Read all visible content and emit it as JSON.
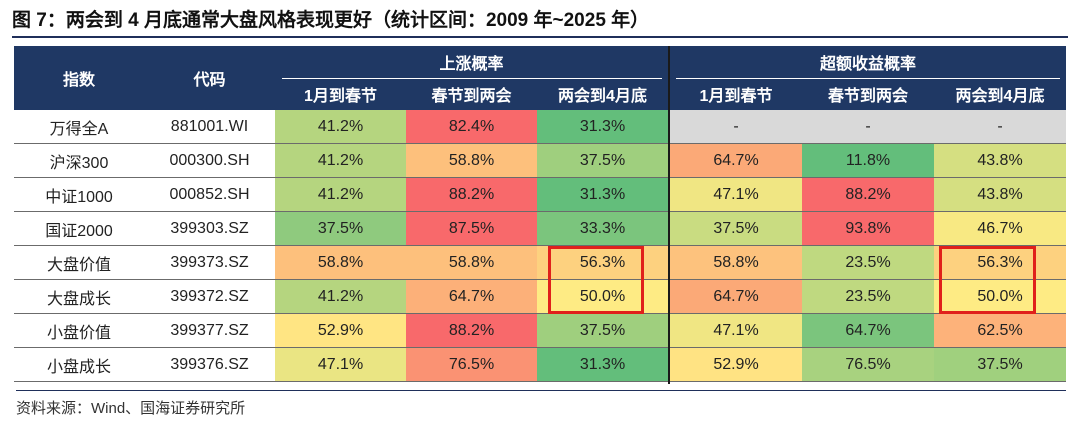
{
  "title": "图 7：两会到 4 月底通常大盘风格表现更好（统计区间：2009 年~2025 年）",
  "source": "资料来源：Wind、国海证券研究所",
  "chart_data": {
    "type": "table",
    "header": {
      "col_index": "指数",
      "col_code": "代码",
      "group1": "上涨概率",
      "group2": "超额收益概率",
      "sub": [
        "1月到春节",
        "春节到两会",
        "两会到4月底",
        "1月到春节",
        "春节到两会",
        "两会到4月底"
      ]
    },
    "rows": [
      {
        "name": "万得全A",
        "code": "881001.WI",
        "values": [
          "41.2%",
          "82.4%",
          "31.3%",
          "-",
          "-",
          "-"
        ]
      },
      {
        "name": "沪深300",
        "code": "000300.SH",
        "values": [
          "41.2%",
          "58.8%",
          "37.5%",
          "64.7%",
          "11.8%",
          "43.8%"
        ]
      },
      {
        "name": "中证1000",
        "code": "000852.SH",
        "values": [
          "41.2%",
          "88.2%",
          "31.3%",
          "47.1%",
          "88.2%",
          "43.8%"
        ]
      },
      {
        "name": "国证2000",
        "code": "399303.SZ",
        "values": [
          "37.5%",
          "87.5%",
          "33.3%",
          "37.5%",
          "93.8%",
          "46.7%"
        ]
      },
      {
        "name": "大盘价值",
        "code": "399373.SZ",
        "values": [
          "58.8%",
          "58.8%",
          "56.3%",
          "58.8%",
          "23.5%",
          "56.3%"
        ]
      },
      {
        "name": "大盘成长",
        "code": "399372.SZ",
        "values": [
          "41.2%",
          "64.7%",
          "50.0%",
          "64.7%",
          "23.5%",
          "50.0%"
        ]
      },
      {
        "name": "小盘价值",
        "code": "399377.SZ",
        "values": [
          "52.9%",
          "88.2%",
          "37.5%",
          "47.1%",
          "64.7%",
          "62.5%"
        ]
      },
      {
        "name": "小盘成长",
        "code": "399376.SZ",
        "values": [
          "47.1%",
          "76.5%",
          "31.3%",
          "52.9%",
          "76.5%",
          "37.5%"
        ]
      }
    ],
    "cell_colors": [
      [
        "#b5d57f",
        "#f8696b",
        "#63be7b",
        "#d9d9d9",
        "#d9d9d9",
        "#d9d9d9"
      ],
      [
        "#b5d57f",
        "#fdc07c",
        "#9fcf7e",
        "#fba977",
        "#63be7b",
        "#d5df81"
      ],
      [
        "#b5d57f",
        "#f8696b",
        "#63be7b",
        "#f0e683",
        "#f8696b",
        "#d5df81"
      ],
      [
        "#8fca7e",
        "#f8696b",
        "#7bc57d",
        "#c9dc81",
        "#f8696b",
        "#f8e983"
      ],
      [
        "#fdc07c",
        "#fdc07c",
        "#fdd17f",
        "#fdc27d",
        "#bfd980",
        "#fdd17f"
      ],
      [
        "#b5d57f",
        "#fcb079",
        "#feeb84",
        "#fba977",
        "#bfd980",
        "#feeb84"
      ],
      [
        "#ffe583",
        "#f8696b",
        "#9fcf7e",
        "#f0e683",
        "#7bc57d",
        "#fdb27a"
      ],
      [
        "#eae583",
        "#fa9273",
        "#63be7b",
        "#ffe383",
        "#a8d27f",
        "#a0d07e"
      ]
    ],
    "highlighted": [
      {
        "rows": [
          "大盘价值",
          "大盘成长"
        ],
        "column": "两会到4月底",
        "group": "上涨概率"
      },
      {
        "rows": [
          "大盘价值",
          "大盘成长"
        ],
        "column": "两会到4月底",
        "group": "超额收益概率"
      }
    ]
  }
}
